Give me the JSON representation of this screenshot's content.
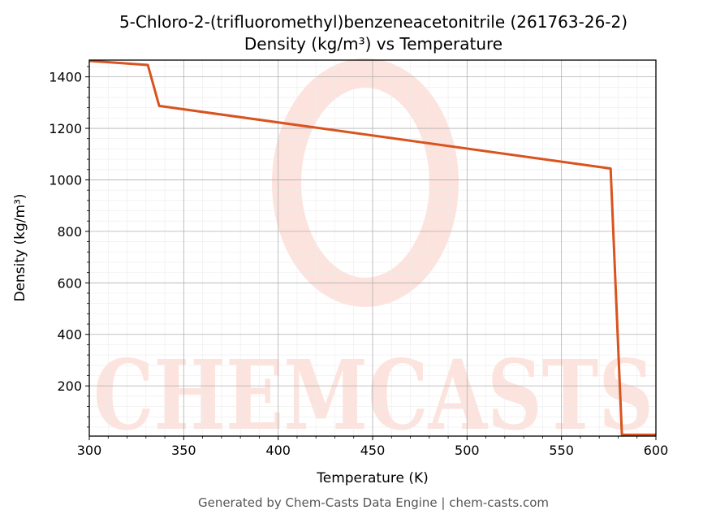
{
  "chart_data": {
    "type": "line",
    "title": "5-Chloro-2-(trifluoromethyl)benzeneacetonitrile (261763-26-2)",
    "subtitle": "Density (kg/m³) vs Temperature",
    "xlabel": "Temperature (K)",
    "ylabel": "Density (kg/m³)",
    "xlim": [
      300,
      600
    ],
    "ylim": [
      5,
      1465
    ],
    "xticks": [
      300,
      350,
      400,
      450,
      500,
      550,
      600
    ],
    "yticks": [
      200,
      400,
      600,
      800,
      1000,
      1200,
      1400
    ],
    "grid": true,
    "series": [
      {
        "color": "#d9531e",
        "points": [
          [
            300,
            1462
          ],
          [
            331,
            1446
          ],
          [
            337,
            1287
          ],
          [
            576,
            1044
          ],
          [
            582,
            10
          ],
          [
            600,
            10
          ]
        ]
      }
    ]
  },
  "watermark": {
    "text": "CHEMCASTS",
    "color": "#fde3dd"
  },
  "footer": {
    "text": "Generated by Chem-Casts Data Engine | chem-casts.com"
  }
}
